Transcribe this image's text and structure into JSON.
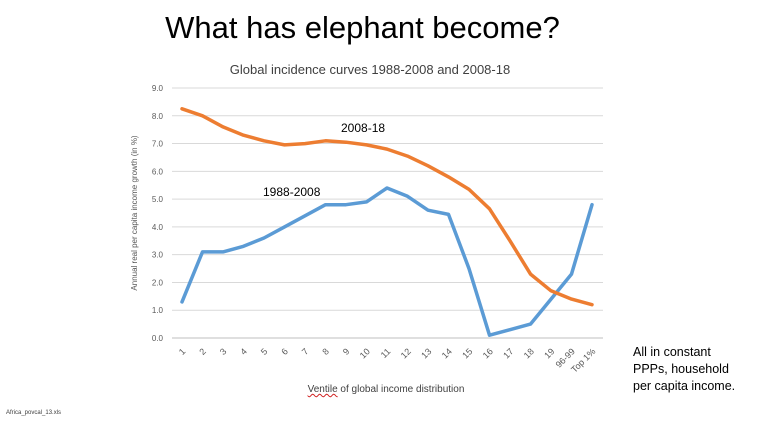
{
  "slide": {
    "title": "What has elephant become?",
    "note_lines": [
      "All in constant",
      "PPPs, household",
      "per capita income."
    ],
    "source": "Africa_povcal_13.xls"
  },
  "chart_data": {
    "type": "line",
    "title": "Global incidence curves 1988-2008 and 2008-18",
    "xlabel_first_word": "Ventile",
    "xlabel_rest": " of global income distribution",
    "ylabel": "Annual real per capita income growth (in %)",
    "ylim": [
      0,
      9
    ],
    "yticks": [
      "0.0",
      "1.0",
      "2.0",
      "3.0",
      "4.0",
      "5.0",
      "6.0",
      "7.0",
      "8.0",
      "9.0"
    ],
    "grid": true,
    "categories": [
      "1",
      "2",
      "3",
      "4",
      "5",
      "6",
      "7",
      "8",
      "9",
      "10",
      "11",
      "12",
      "13",
      "14",
      "15",
      "16",
      "17",
      "18",
      "19",
      "96-99",
      "Top 1%"
    ],
    "series": [
      {
        "name": "1988-2008",
        "color": "#5b9bd5",
        "values": [
          1.3,
          3.1,
          3.1,
          3.3,
          3.6,
          4.0,
          4.4,
          4.8,
          4.8,
          4.9,
          5.4,
          5.1,
          4.6,
          4.45,
          2.5,
          0.1,
          0.3,
          0.5,
          1.4,
          2.3,
          4.8
        ]
      },
      {
        "name": "2008-18",
        "color": "#ed7d31",
        "values": [
          8.25,
          8.0,
          7.6,
          7.3,
          7.1,
          6.95,
          7.0,
          7.1,
          7.05,
          6.95,
          6.8,
          6.55,
          6.2,
          5.8,
          5.35,
          4.65,
          3.5,
          2.3,
          1.7,
          1.4,
          1.2
        ]
      }
    ]
  }
}
